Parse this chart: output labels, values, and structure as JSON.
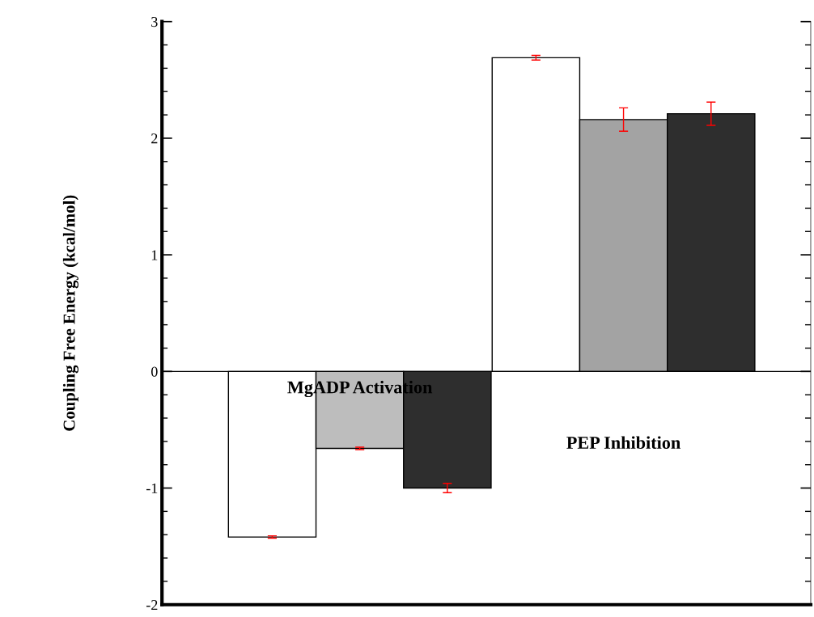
{
  "chart_data": {
    "type": "bar",
    "ylabel": "Coupling Free Energy (kcal/mol)",
    "categories": [
      "MgADP Activation",
      "PEP Inhibition"
    ],
    "series": [
      {
        "color": "#ffffff",
        "values": [
          -1.42,
          2.69
        ],
        "errors": [
          0.01,
          0.02
        ]
      },
      {
        "colors": [
          "#bdbdbd",
          "#a3a3a3"
        ],
        "values": [
          -0.66,
          2.16
        ],
        "errors": [
          0.01,
          0.1
        ]
      },
      {
        "color": "#2e2e2e",
        "values": [
          -1.0,
          2.21
        ],
        "errors": [
          0.04,
          0.1
        ]
      }
    ],
    "ylim": [
      -2,
      3
    ],
    "yticks": [
      -2,
      -1,
      0,
      1,
      2,
      3
    ],
    "ref_lines": [
      {
        "axis": "y",
        "value": 0,
        "color": "#000000"
      }
    ],
    "grid": false,
    "legend": false,
    "tick_labels": "y"
  }
}
